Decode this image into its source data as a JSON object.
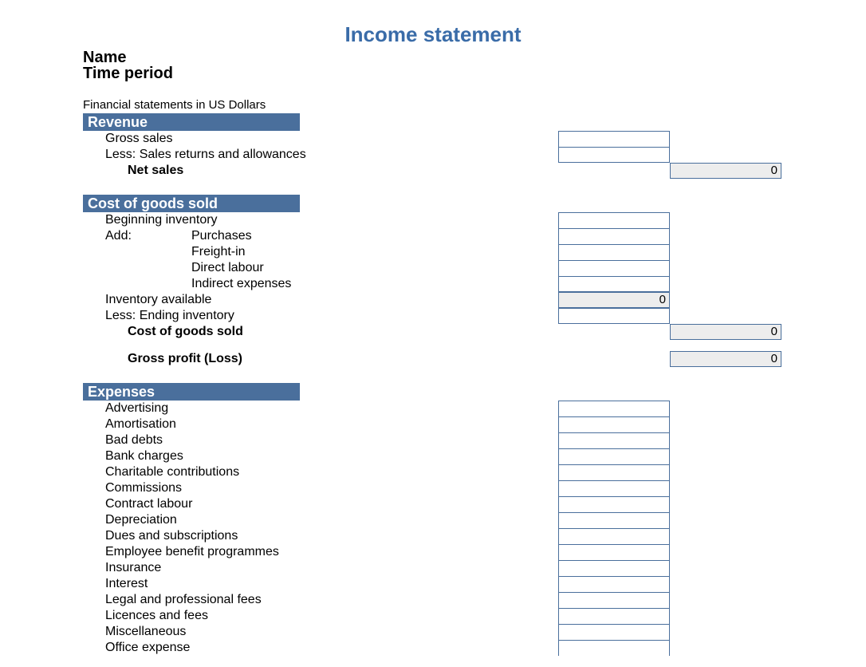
{
  "title": "Income statement",
  "title_color": "#3a6ca8",
  "text_color": "#000000",
  "section_bar_bg": "#4a6f9c",
  "section_bar_fg": "#ffffff",
  "cell_border_color": "#4a6f9c",
  "calc_bg": "#ededed",
  "header": {
    "name_label": "Name",
    "period_label": "Time period"
  },
  "currency_note": "Financial statements in US Dollars",
  "revenue": {
    "section": "Revenue",
    "gross_sales": "Gross sales",
    "less_returns": "Less: Sales returns and allowances",
    "net_sales": "Net sales",
    "gross_sales_value": "",
    "less_returns_value": "",
    "net_sales_value": "0"
  },
  "cogs": {
    "section": "Cost of goods sold",
    "beginning_inventory": "Beginning inventory",
    "add": "Add:",
    "purchases": "Purchases",
    "freight_in": "Freight-in",
    "direct_labour": "Direct labour",
    "indirect_expenses": "Indirect expenses",
    "inventory_available": "Inventory available",
    "less_ending_inventory": "Less: Ending inventory",
    "cost_of_goods_sold": "Cost of goods sold",
    "gross_profit": "Gross profit (Loss)",
    "beginning_inventory_value": "",
    "purchases_value": "",
    "freight_in_value": "",
    "direct_labour_value": "",
    "indirect_expenses_value": "",
    "inventory_available_value": "0",
    "less_ending_inventory_value": "",
    "cost_of_goods_sold_value": "0",
    "gross_profit_value": "0"
  },
  "expenses": {
    "section": "Expenses",
    "items": [
      "Advertising",
      "Amortisation",
      "Bad debts",
      "Bank charges",
      "Charitable contributions",
      "Commissions",
      "Contract labour",
      "Depreciation",
      "Dues and subscriptions",
      "Employee benefit programmes",
      "Insurance",
      "Interest",
      "Legal and professional fees",
      "Licences and fees",
      "Miscellaneous",
      "Office expense"
    ],
    "values": [
      "",
      "",
      "",
      "",
      "",
      "",
      "",
      "",
      "",
      "",
      "",
      "",
      "",
      "",
      "",
      ""
    ]
  }
}
